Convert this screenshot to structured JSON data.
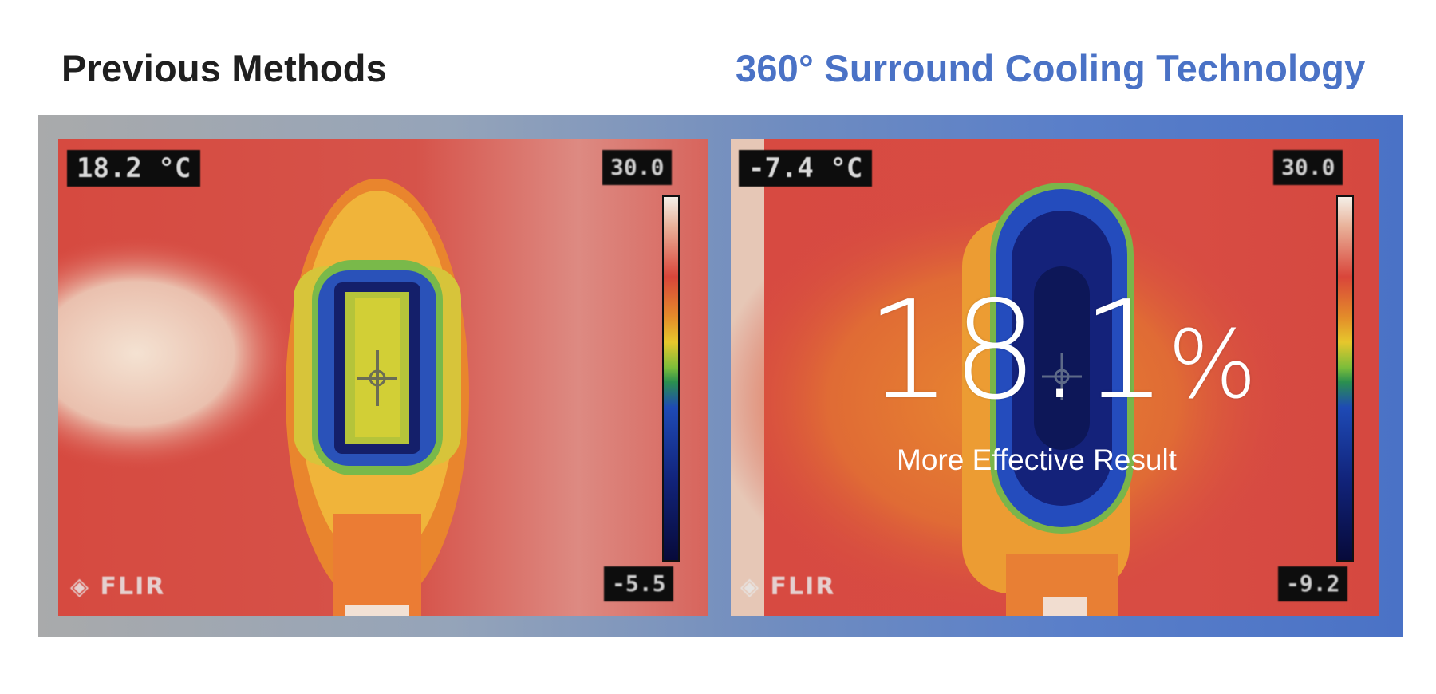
{
  "headings": {
    "left": "Previous Methods",
    "right": "360° Surround Cooling Technology"
  },
  "left_panel": {
    "temp_readout": "18.2 °C",
    "scale_top": "30.0",
    "scale_bottom": "-5.5",
    "brand": "FLIR"
  },
  "right_panel": {
    "temp_readout": "-7.4 °C",
    "scale_top": "30.0",
    "scale_bottom": "-9.2",
    "brand": "FLIR"
  },
  "result": {
    "value": "18.1",
    "unit": "%",
    "caption": "More Effective Result"
  },
  "colors": {
    "accent_blue": "#4a72c6",
    "heading_dark": "#1f1f1f",
    "thermal_red": "#d9483f"
  }
}
